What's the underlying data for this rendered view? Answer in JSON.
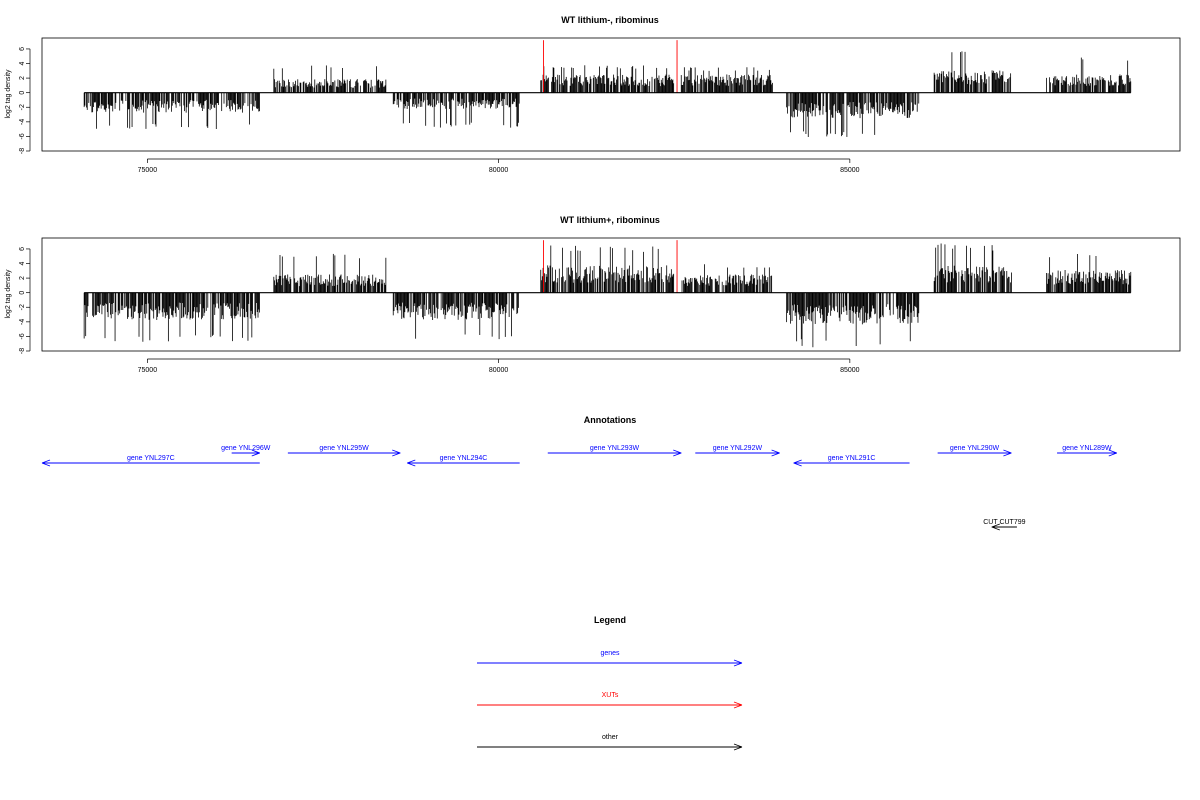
{
  "panels": [
    {
      "title": "WT lithium-, ribominus",
      "ylabel": "log2 tag density",
      "yticks": [
        -8,
        -6,
        -4,
        -2,
        0,
        2,
        4,
        6
      ],
      "xticks": [
        75000,
        80000,
        85000
      ],
      "xlim": [
        73500,
        89700
      ],
      "ylim": [
        -8,
        7.5
      ]
    },
    {
      "title": "WT lithium+, ribominus",
      "ylabel": "log2 tag density",
      "yticks": [
        -8,
        -6,
        -4,
        -2,
        0,
        2,
        4,
        6
      ],
      "xticks": [
        75000,
        80000,
        85000
      ],
      "xlim": [
        73500,
        89700
      ],
      "ylim": [
        -8,
        7.5
      ]
    }
  ],
  "chart_data": [
    {
      "type": "bar",
      "title": "WT lithium-, ribominus",
      "ylabel": "log2 tag density",
      "xlim": [
        73500,
        89700
      ],
      "ylim": [
        -8,
        7.5
      ],
      "segments": [
        {
          "from": 74100,
          "to": 76600,
          "strand": "minus",
          "mean": -2.2,
          "max": -5.0
        },
        {
          "from": 76800,
          "to": 78400,
          "strand": "plus",
          "mean": 1.5,
          "max": 3.8
        },
        {
          "from": 78500,
          "to": 80300,
          "strand": "minus",
          "mean": -1.8,
          "max": -4.8
        },
        {
          "from": 80600,
          "to": 82500,
          "strand": "plus",
          "mean": 2.0,
          "max": 3.8
        },
        {
          "from": 82600,
          "to": 83900,
          "strand": "plus",
          "mean": 2.0,
          "max": 3.5
        },
        {
          "from": 84100,
          "to": 86000,
          "strand": "minus",
          "mean": -2.8,
          "max": -6.2
        },
        {
          "from": 86200,
          "to": 87300,
          "strand": "plus",
          "mean": 2.5,
          "max": 6.5
        },
        {
          "from": 87800,
          "to": 89000,
          "strand": "plus",
          "mean": 2.0,
          "max": 5.0
        }
      ],
      "markers": [
        80640,
        82540
      ]
    },
    {
      "type": "bar",
      "title": "WT lithium+, ribominus",
      "ylabel": "log2 tag density",
      "xlim": [
        73500,
        89700
      ],
      "ylim": [
        -8,
        7.5
      ],
      "segments": [
        {
          "from": 74100,
          "to": 76600,
          "strand": "minus",
          "mean": -3.0,
          "max": -6.8
        },
        {
          "from": 76800,
          "to": 78400,
          "strand": "plus",
          "mean": 2.0,
          "max": 5.5
        },
        {
          "from": 78500,
          "to": 80300,
          "strand": "minus",
          "mean": -3.0,
          "max": -6.5
        },
        {
          "from": 80600,
          "to": 82500,
          "strand": "plus",
          "mean": 3.0,
          "max": 6.5
        },
        {
          "from": 82600,
          "to": 83900,
          "strand": "plus",
          "mean": 2.0,
          "max": 4.0
        },
        {
          "from": 84100,
          "to": 86000,
          "strand": "minus",
          "mean": -3.5,
          "max": -7.5
        },
        {
          "from": 86200,
          "to": 87300,
          "strand": "plus",
          "mean": 3.0,
          "max": 6.8
        },
        {
          "from": 87800,
          "to": 89000,
          "strand": "plus",
          "mean": 2.5,
          "max": 5.5
        }
      ],
      "markers": [
        80640,
        82540
      ]
    }
  ],
  "annotations": {
    "title": "Annotations",
    "genes": [
      {
        "label": "gene YNL297C",
        "start": 73500,
        "end": 76600,
        "strand": "-",
        "row": 1
      },
      {
        "label": "gene YNL296W",
        "start": 76200,
        "end": 76600,
        "strand": "+",
        "row": 0
      },
      {
        "label": "gene YNL295W",
        "start": 77000,
        "end": 78600,
        "strand": "+",
        "row": 0
      },
      {
        "label": "gene YNL294C",
        "start": 78700,
        "end": 80300,
        "strand": "-",
        "row": 1
      },
      {
        "label": "gene YNL293W",
        "start": 80700,
        "end": 82600,
        "strand": "+",
        "row": 0
      },
      {
        "label": "gene YNL292W",
        "start": 82800,
        "end": 84000,
        "strand": "+",
        "row": 0
      },
      {
        "label": "gene YNL291C",
        "start": 84200,
        "end": 85850,
        "strand": "-",
        "row": 1
      },
      {
        "label": "gene YNL290W",
        "start": 86250,
        "end": 87300,
        "strand": "+",
        "row": 0
      },
      {
        "label": "gene YNL289W",
        "start": 87950,
        "end": 88800,
        "strand": "+",
        "row": 0
      }
    ],
    "others": [
      {
        "label": "CUT CUT799",
        "start": 86950,
        "end": 87450,
        "strand": "-"
      }
    ]
  },
  "legend": {
    "title": "Legend",
    "items": [
      {
        "label": "genes",
        "color": "#0000ff"
      },
      {
        "label": "XUTs",
        "color": "#ff0000"
      },
      {
        "label": "other",
        "color": "#000000"
      }
    ]
  },
  "colors": {
    "gene": "#0000ff",
    "xut": "#ff0000",
    "other": "#000000",
    "signal": "#000000"
  }
}
